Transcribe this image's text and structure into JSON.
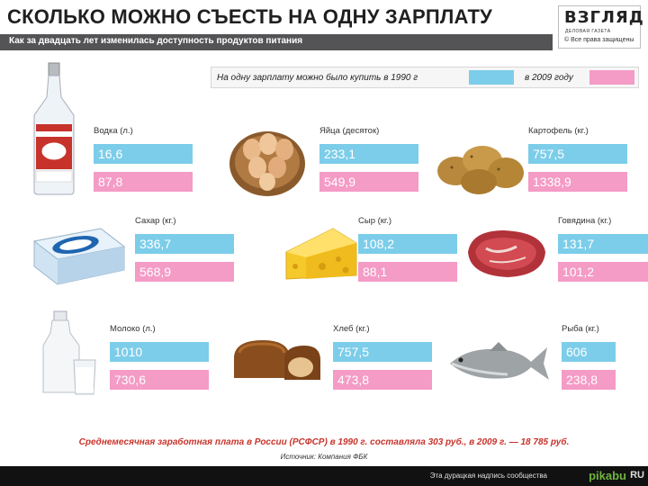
{
  "header": {
    "title": "СКОЛЬКО МОЖНО СЪЕСТЬ НА ОДНУ ЗАРПЛАТУ",
    "subtitle": "Как за двадцать лет изменилась доступность продуктов питания",
    "logo": "ВЗГЛЯД",
    "logo_tagline": "ДЕЛОВАЯ ГАЗЕТА",
    "logo_copyright": "© Все права защищены"
  },
  "legend": {
    "text_1990": "На одну зарплату можно было купить в 1990 г",
    "text_2009": "в 2009 году",
    "color_1990": "#7ccde9",
    "color_2009": "#f49bc6"
  },
  "chart_data": {
    "type": "bar",
    "title": "СКОЛЬКО МОЖНО СЪЕСТЬ НА ОДНУ ЗАРПЛАТУ",
    "categories": [
      "Водка (л.)",
      "Яйца (десяток)",
      "Картофель (кг.)",
      "Сахар (кг.)",
      "Сыр (кг.)",
      "Говядина (кг.)",
      "Молоко (л.)",
      "Хлеб (кг.)",
      "Рыба (кг.)"
    ],
    "series": [
      {
        "name": "На одну зарплату можно было купить в 1990 г",
        "values": [
          "16,6",
          "233,1",
          "757,5",
          "336,7",
          "108,2",
          "131,7",
          "1010",
          "757,5",
          "606"
        ]
      },
      {
        "name": "в 2009 году",
        "values": [
          "87,8",
          "549,9",
          "1338,9",
          "568,9",
          "88,1",
          "101,2",
          "730,6",
          "473,8",
          "238,8"
        ]
      }
    ]
  },
  "icons": [
    "vodka-bottle-icon",
    "eggs-basket-icon",
    "potatoes-icon",
    "sugar-pack-icon",
    "cheese-icon",
    "beef-icon",
    "milk-icon",
    "bread-icon",
    "fish-icon"
  ],
  "footer": {
    "note": "Среднемесячная заработная плата в России (РСФСР) в 1990 г. составляла 303 руб., в 2009 г. — 18 785 руб.",
    "source": "Источник: Компания ФБК",
    "community": "Эта дурацкая надпись сообщества",
    "brand": "pikabu",
    "brand_tld": "RU"
  }
}
